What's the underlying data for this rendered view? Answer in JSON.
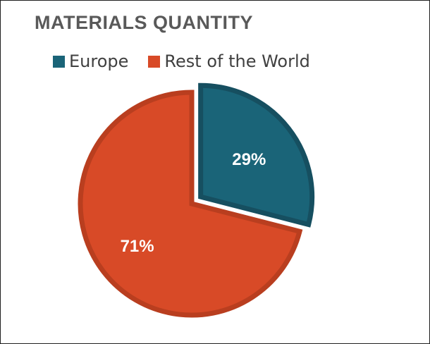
{
  "chart_data": {
    "type": "pie",
    "title": "MATERIALS QUANTITY",
    "legend_position": "top",
    "categories": [
      "Europe",
      "Rest of the World"
    ],
    "values": [
      29,
      71
    ],
    "data_labels": [
      "29%",
      "71%"
    ],
    "colors": [
      "#1a6478",
      "#d84a27"
    ],
    "exploded": [
      "Europe"
    ]
  }
}
